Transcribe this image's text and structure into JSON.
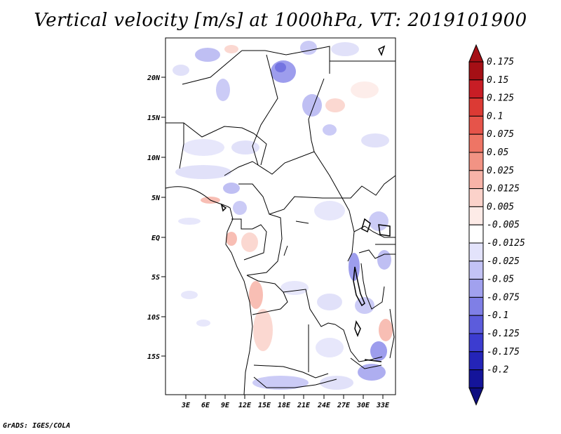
{
  "title": "Vertical velocity [m/s] at 1000hPa, VT: 2019101900",
  "footer": "GrADS: IGES/COLA",
  "map": {
    "lat_labels": [
      "20N",
      "15N",
      "10N",
      "5N",
      "EQ",
      "5S",
      "10S",
      "15S"
    ],
    "lon_labels": [
      "3E",
      "6E",
      "9E",
      "12E",
      "15E",
      "18E",
      "21E",
      "24E",
      "27E",
      "30E",
      "33E"
    ]
  },
  "colorbar": {
    "levels": [
      {
        "label": "0.175",
        "color": "#a50f15"
      },
      {
        "label": "0.15",
        "color": "#c81d25"
      },
      {
        "label": "0.125",
        "color": "#dc3a34"
      },
      {
        "label": "0.1",
        "color": "#e6544a"
      },
      {
        "label": "0.075",
        "color": "#ee7565"
      },
      {
        "label": "0.05",
        "color": "#f29384"
      },
      {
        "label": "0.025",
        "color": "#f7b3a8"
      },
      {
        "label": "0.0125",
        "color": "#fbd2ca"
      },
      {
        "label": "0.005",
        "color": "#fdebe7"
      },
      {
        "label": "-0.005",
        "color": "#ffffff"
      },
      {
        "label": "-0.0125",
        "color": "#e3e3fb"
      },
      {
        "label": "-0.025",
        "color": "#c3c3f5"
      },
      {
        "label": "-0.05",
        "color": "#a1a1ee"
      },
      {
        "label": "-0.075",
        "color": "#7f7fe6"
      },
      {
        "label": "-0.1",
        "color": "#5c5cdc"
      },
      {
        "label": "-0.125",
        "color": "#3c3cd0"
      },
      {
        "label": "-0.175",
        "color": "#2424b8"
      },
      {
        "label": "-0.2",
        "color": "#14149a"
      }
    ],
    "top_color": "#a50f15",
    "bottom_color": "#0e0e80"
  }
}
